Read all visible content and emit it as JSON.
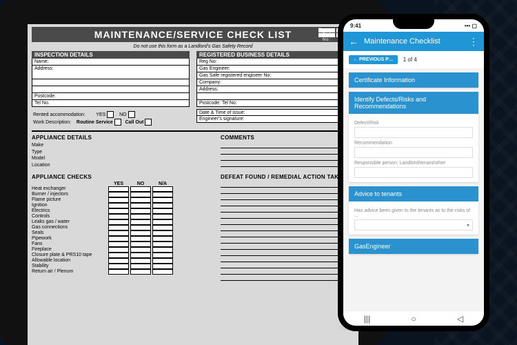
{
  "colors": {
    "formBg": "#d9d9d9",
    "darkbar": "#4a4a4a",
    "appBlue": "#2196d6",
    "cardBlue": "#2a93cf"
  },
  "form": {
    "title": "MAINTENANCE/SERVICE CHECK LIST",
    "reportLabel": "Report",
    "refLabel": "Ref No:",
    "subnote": "Do not use this form as a Landlord's Gas Safety Record",
    "inspection": {
      "heading": "INSPECTION DETAILS",
      "fields": [
        "Name:",
        "Address:",
        "",
        "",
        "Postcode:",
        "Tel No."
      ]
    },
    "business": {
      "heading": "REGISTERED BUSINESS DETAILS",
      "fields": [
        "Reg No:",
        "Gas Engineer:",
        "Gas Safe registered engineer No:",
        "Company:",
        "Address:",
        "",
        "Postcode:                              Tel No:",
        "Date & Time of issue:",
        "Engineer's signature:"
      ]
    },
    "rented": {
      "label": "Rented accommodation:",
      "yes": "YES",
      "no": "NO"
    },
    "work": {
      "label": "Work Description:",
      "a": "Routine Service",
      "b": "Call Out"
    },
    "appliance": {
      "heading": "APPLIANCE DETAILS",
      "rows": [
        "Make",
        "Type",
        "Model",
        "Location"
      ]
    },
    "comments": {
      "heading": "COMMENTS"
    },
    "checks": {
      "heading": "APPLIANCE CHECKS",
      "cols": [
        "YES",
        "NO",
        "N/A"
      ],
      "rows": [
        "Heat exchanger",
        "Burner / injectors",
        "Flame picture",
        "Ignition",
        "Electrics",
        "Controls",
        "Leaks gas / water",
        "Gas connections",
        "Seals",
        "Pipework",
        "Fans",
        "Fireplace",
        "Closure plate & PRS10 tape",
        "Allowable location",
        "Stability",
        "Return air / Plenum"
      ]
    },
    "defeat": {
      "heading": "DEFEAT FOUND / REMEDIAL ACTION TAKEN"
    }
  },
  "phone": {
    "time": "9:41",
    "title": "Maintenance Checklist",
    "prev": "← PREVIOUS P…",
    "pager": "1 of 4",
    "card1": "Certificate Information",
    "card2": {
      "title": "Identify Defects/Risks and Recommendations",
      "f1": "Defect/Risk",
      "f2": "Recommendation",
      "f3": "Responsible person: Landlord/tenant/other"
    },
    "card3": {
      "title": "Advice to tenants",
      "f1": "Has advice been given to the tenants as to the risks of …"
    },
    "card4": "GasEngineer"
  }
}
